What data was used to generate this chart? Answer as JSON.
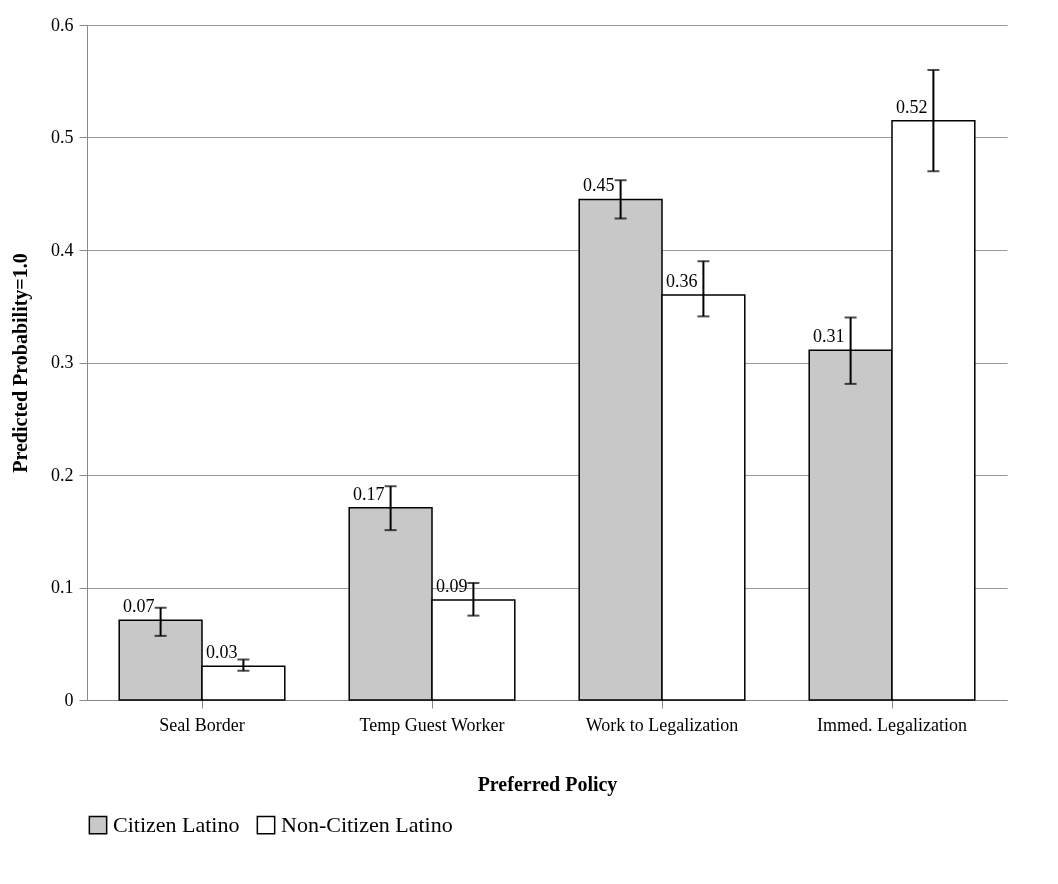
{
  "chart_data": {
    "type": "bar",
    "xlabel": "Preferred Policy",
    "ylabel": "Predicted Probability=1.0",
    "categories": [
      "Seal Border",
      "Temp Guest Worker",
      "Work to Legalization",
      "Immed. Legalization"
    ],
    "series": [
      {
        "name": "Citizen Latino",
        "color": "#c8c8c8",
        "values": [
          0.071,
          0.171,
          0.445,
          0.311
        ],
        "errors": [
          [
            0.057,
            0.082
          ],
          [
            0.151,
            0.19
          ],
          [
            0.428,
            0.462
          ],
          [
            0.281,
            0.34
          ]
        ],
        "value_labels": [
          "0.07",
          "0.17",
          "0.45",
          "0.31"
        ]
      },
      {
        "name": "Non-Citizen Latino",
        "color": "#ffffff",
        "values": [
          0.03,
          0.089,
          0.36,
          0.515
        ],
        "errors": [
          [
            0.026,
            0.036
          ],
          [
            0.075,
            0.104
          ],
          [
            0.341,
            0.39
          ],
          [
            0.47,
            0.56
          ]
        ],
        "value_labels": [
          "0.03",
          "0.09",
          "0.36",
          "0.52"
        ]
      }
    ],
    "ylim": [
      0,
      0.6
    ],
    "yticks": [
      0,
      0.1,
      0.2,
      0.3,
      0.4,
      0.5,
      0.6
    ],
    "grid": "y",
    "legend": "bottom"
  }
}
